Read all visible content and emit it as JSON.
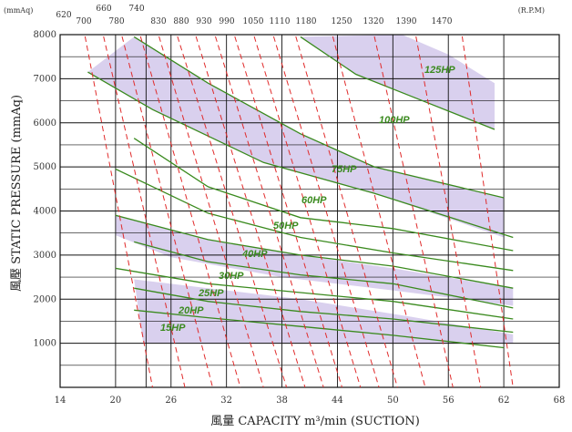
{
  "chart_data": {
    "type": "line",
    "title": "",
    "xlabel": "風量 CAPACITY m³/min (SUCTION)",
    "ylabel": "風壓 STATIC PRESSURE (mmAq)",
    "y_unit_label": "(mmAq)",
    "rpm_unit_label": "(R.P.M)",
    "xlim": [
      14,
      68
    ],
    "ylim": [
      0,
      8000
    ],
    "x_ticks": [
      "14",
      "20",
      "26",
      "32",
      "38",
      "44",
      "50",
      "56",
      "62",
      "68"
    ],
    "x_tick_values": [
      14,
      20,
      26,
      32,
      38,
      44,
      50,
      56,
      62,
      68
    ],
    "y_ticks": [
      "1000",
      "2000",
      "3000",
      "4000",
      "5000",
      "6000",
      "7000",
      "8000"
    ],
    "y_tick_values": [
      1000,
      2000,
      3000,
      4000,
      5000,
      6000,
      7000,
      8000
    ],
    "grid": true,
    "rpm_labels": [
      "620",
      "660",
      "700",
      "740",
      "780",
      "830",
      "880",
      "930",
      "990",
      "1050",
      "1110",
      "1180",
      "1250",
      "1320",
      "1390",
      "1470"
    ],
    "hp_labels": [
      "15HP",
      "20HP",
      "25HP",
      "30HP",
      "40HP",
      "50HP",
      "60HP",
      "75HP",
      "100HP",
      "125HP"
    ],
    "bands": [
      {
        "upper": [
          [
            22,
            7950
          ],
          [
            30,
            6900
          ],
          [
            40,
            5750
          ],
          [
            48,
            5000
          ],
          [
            62,
            4300
          ]
        ],
        "lower": [
          [
            17,
            7150
          ],
          [
            24,
            6300
          ],
          [
            36,
            5100
          ],
          [
            48,
            4400
          ],
          [
            62,
            3400
          ]
        ]
      },
      {
        "upper": [
          [
            40,
            7950
          ],
          [
            46,
            7100
          ],
          [
            52,
            6600
          ],
          [
            61,
            5850
          ]
        ],
        "lower": [
          [
            51,
            8000
          ],
          [
            56,
            7550
          ],
          [
            61,
            6900
          ]
        ]
      },
      {
        "upper": [
          [
            20,
            3900
          ],
          [
            30,
            3350
          ],
          [
            40,
            3000
          ],
          [
            50,
            2700
          ],
          [
            63,
            2250
          ]
        ],
        "lower": [
          [
            20,
            3450
          ],
          [
            26,
            2950
          ],
          [
            38,
            2500
          ],
          [
            50,
            2200
          ],
          [
            63,
            1850
          ]
        ]
      },
      {
        "upper": [
          [
            22,
            2450
          ],
          [
            30,
            2250
          ],
          [
            40,
            2000
          ],
          [
            52,
            1600
          ],
          [
            63,
            1200
          ]
        ],
        "lower": [
          [
            23,
            1000
          ],
          [
            44,
            1000
          ],
          [
            52,
            1000
          ],
          [
            63,
            1000
          ]
        ]
      }
    ],
    "series": [
      {
        "name": "15HP",
        "x": [
          22,
          30,
          40,
          50,
          62
        ],
        "y": [
          1750,
          1580,
          1380,
          1180,
          900
        ]
      },
      {
        "name": "20HP",
        "x": [
          22,
          30,
          40,
          50,
          63
        ],
        "y": [
          2250,
          1950,
          1720,
          1550,
          1250
        ]
      },
      {
        "name": "25HP",
        "x": [
          20,
          30,
          40,
          50,
          63
        ],
        "y": [
          2700,
          2350,
          2150,
          1950,
          1550
        ]
      },
      {
        "name": "30HP",
        "x": [
          22,
          30,
          40,
          50,
          63
        ],
        "y": [
          3300,
          2850,
          2550,
          2350,
          1800
        ]
      },
      {
        "name": "40HP",
        "x": [
          20,
          30,
          40,
          50,
          63
        ],
        "y": [
          3900,
          3350,
          3000,
          2750,
          2250
        ]
      },
      {
        "name": "50HP",
        "x": [
          20,
          30,
          40,
          50,
          63
        ],
        "y": [
          4950,
          3950,
          3400,
          3050,
          2650
        ]
      },
      {
        "name": "60HP",
        "x": [
          22,
          30,
          40,
          50,
          63
        ],
        "y": [
          5650,
          4550,
          3850,
          3600,
          3100
        ]
      },
      {
        "name": "75HP",
        "x": [
          17,
          24,
          36,
          48,
          63
        ],
        "y": [
          7150,
          6300,
          5100,
          4400,
          3400
        ]
      },
      {
        "name": "100HP",
        "x": [
          22,
          30,
          40,
          48,
          62
        ],
        "y": [
          7950,
          6900,
          5750,
          5000,
          4300
        ]
      },
      {
        "name": "125HP",
        "x": [
          40,
          46,
          52,
          61
        ],
        "y": [
          7950,
          7100,
          6600,
          5850
        ]
      }
    ],
    "rpm_lines": [
      {
        "rpm": "620",
        "x1": 16.7,
        "x2": 24.0
      },
      {
        "rpm": "660",
        "x1": 18.7,
        "x2": 27.5
      },
      {
        "rpm": "700",
        "x1": 20.7,
        "x2": 30.5
      },
      {
        "rpm": "740",
        "x1": 22.7,
        "x2": 33.5
      },
      {
        "rpm": "780",
        "x1": 24.7,
        "x2": 36.0
      },
      {
        "rpm": "830",
        "x1": 26.7,
        "x2": 38.5
      },
      {
        "rpm": "880",
        "x1": 28.7,
        "x2": 40.5
      },
      {
        "rpm": "930",
        "x1": 30.8,
        "x2": 42.5
      },
      {
        "rpm": "990",
        "x1": 32.9,
        "x2": 44.5
      },
      {
        "rpm": "1050",
        "x1": 35.0,
        "x2": 46.5
      },
      {
        "rpm": "1110",
        "x1": 37.1,
        "x2": 48.5
      },
      {
        "rpm": "1180",
        "x1": 39.5,
        "x2": 50.5
      },
      {
        "rpm": "1250",
        "x1": 43.5,
        "x2": 53.5
      },
      {
        "rpm": "1320",
        "x1": 48.0,
        "x2": 56.5
      },
      {
        "rpm": "1390",
        "x1": 52.5,
        "x2": 59.5
      },
      {
        "rpm": "1470",
        "x1": 57.5,
        "x2": 63.0
      }
    ]
  },
  "colors": {
    "grid": "#111111",
    "band": "#d9d0ee",
    "hp_curve": "#3a8a1e",
    "rpm_line": "#e02a2a",
    "text": "#333333"
  }
}
